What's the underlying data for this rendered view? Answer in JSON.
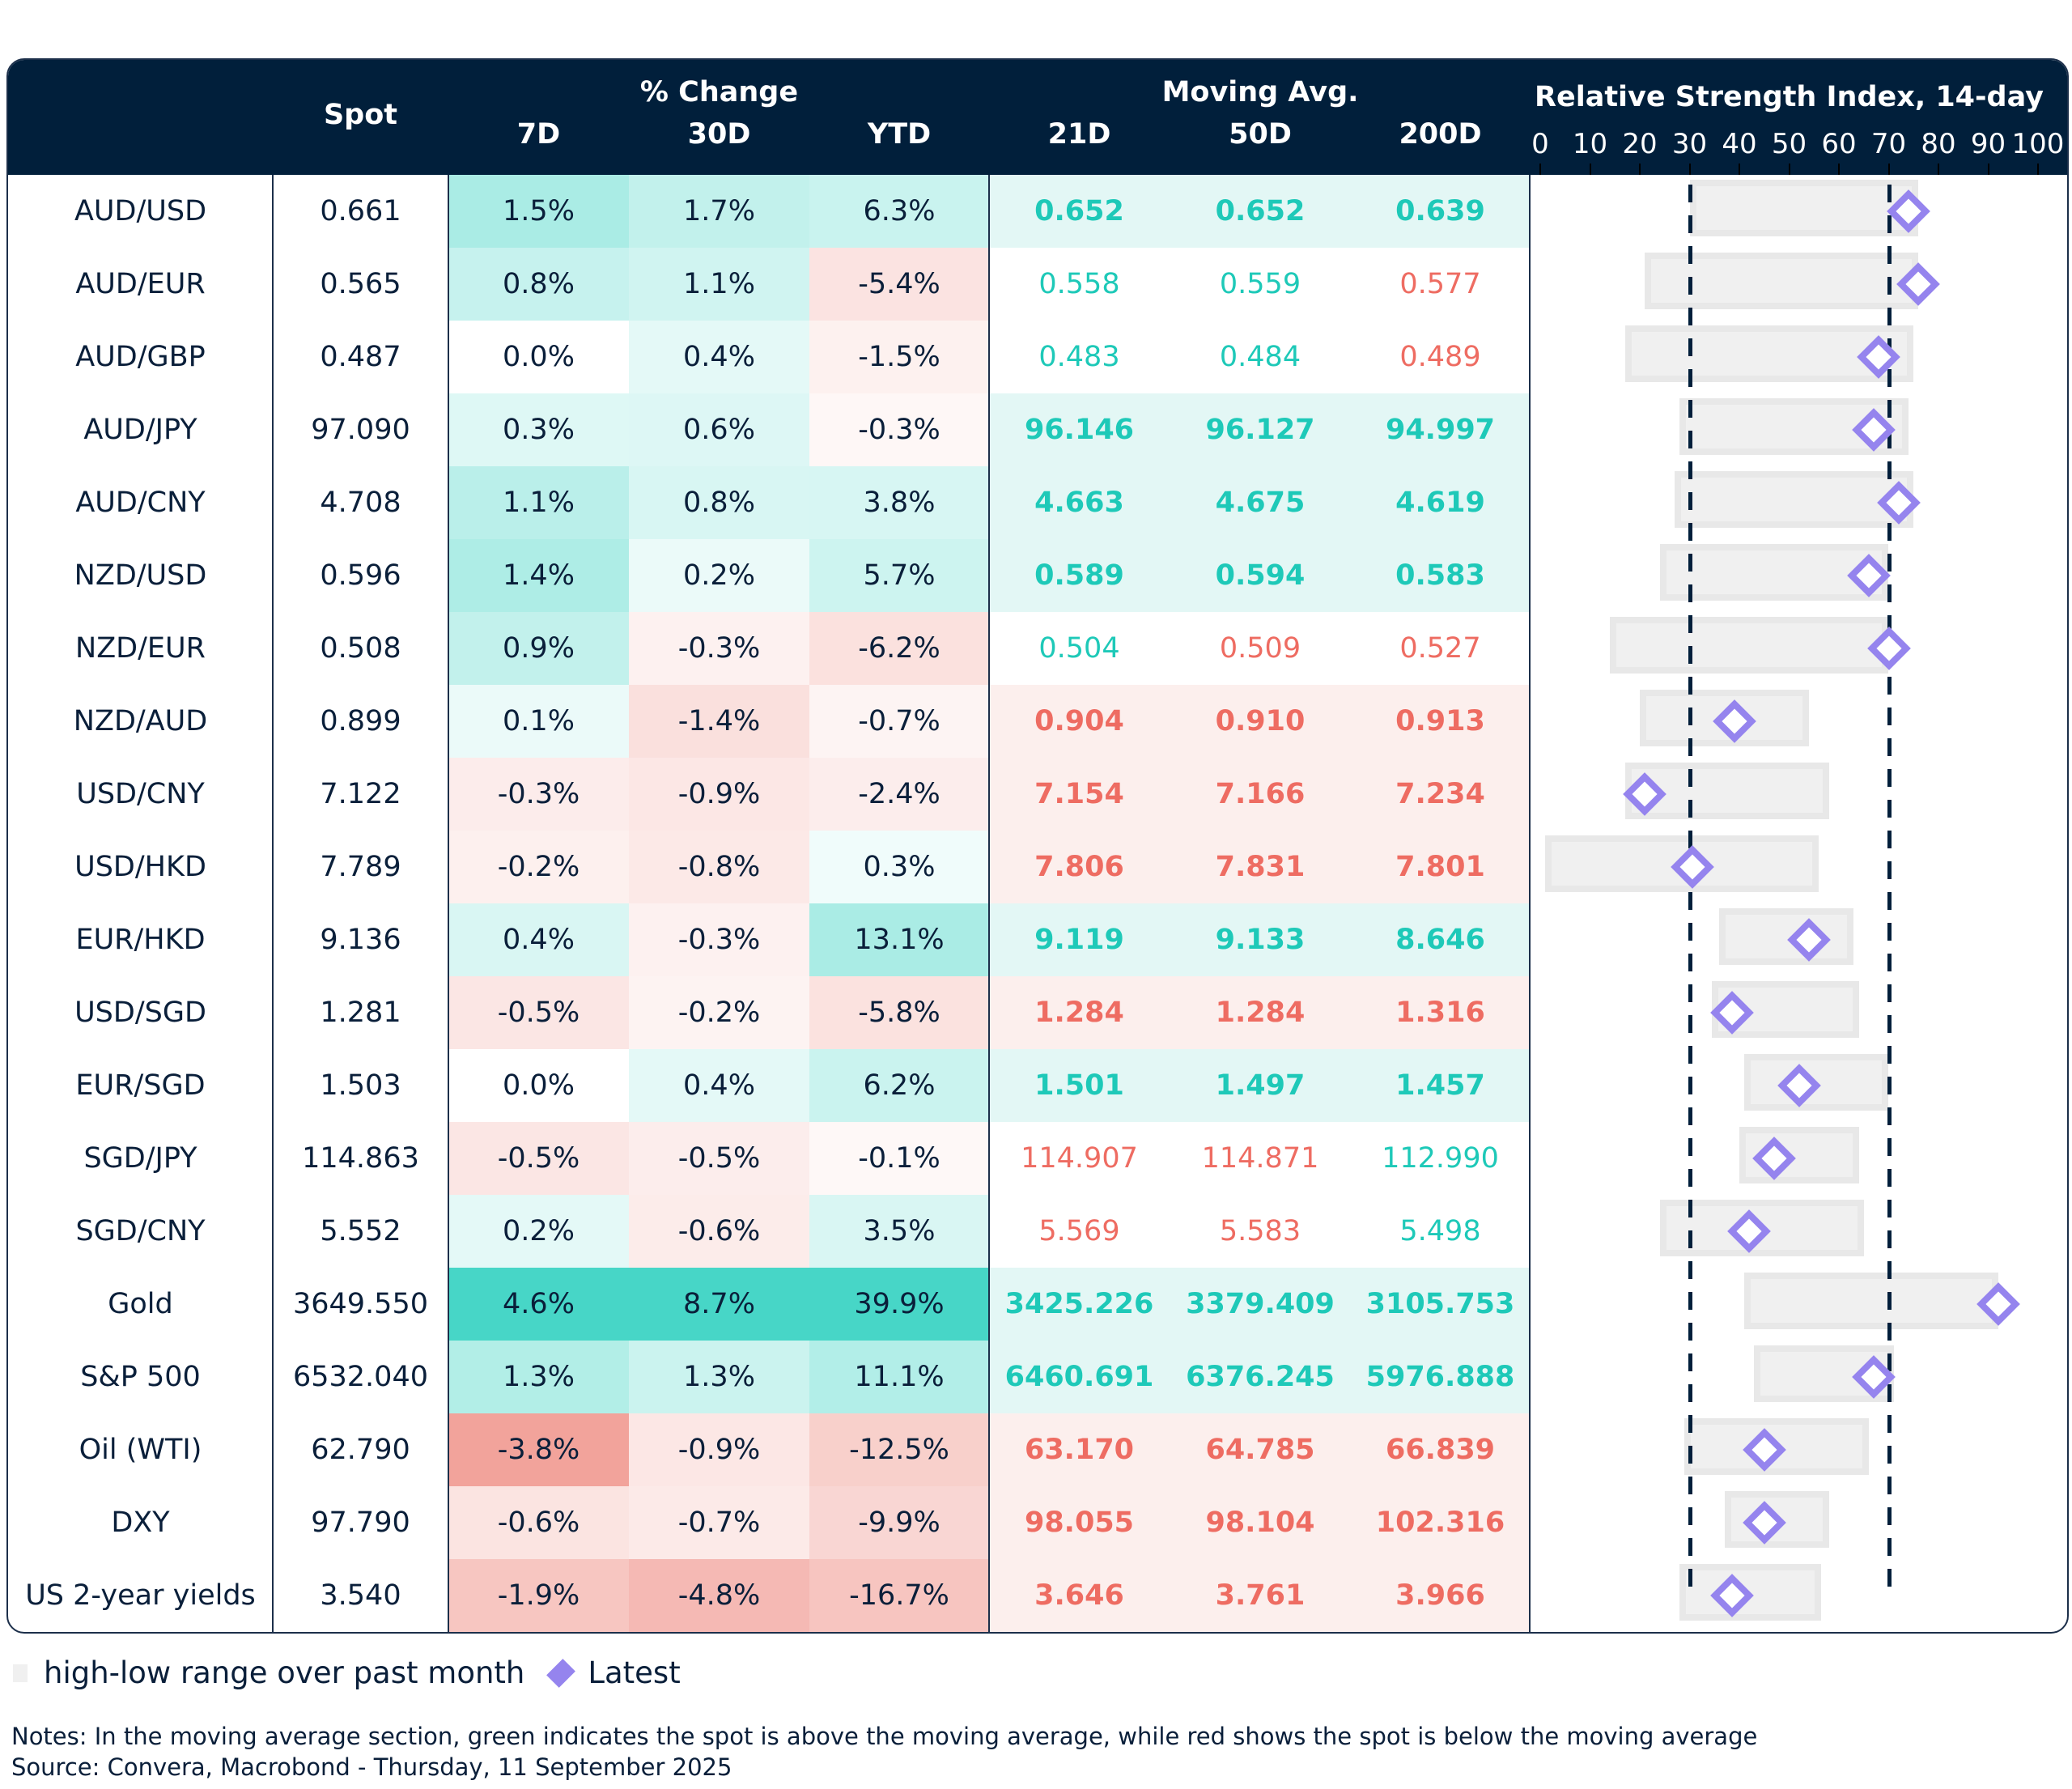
{
  "header": {
    "spot": "Spot",
    "pct_change": "% Change",
    "pct_cols": [
      "7D",
      "30D",
      "YTD"
    ],
    "moving_avg": "Moving Avg.",
    "ma_cols": [
      "21D",
      "50D",
      "200D"
    ],
    "rsi_title": "Relative Strength Index, 14-day",
    "rsi_ticks": [
      "0",
      "10",
      "20",
      "30",
      "40",
      "50",
      "60",
      "70",
      "80",
      "90",
      "100"
    ]
  },
  "colors": {
    "header_bg": "#011f3b",
    "green_text": "#1ec9b8",
    "red_text": "#ee6c62",
    "green_strong": "#33d1c1",
    "red_strong": "#ee8a80",
    "ma_green_bg": "#e3f7f5",
    "ma_red_bg": "#fcefed",
    "rsi_marker": "#9584ee",
    "rsi_range": "#f0f0f0"
  },
  "chart_data": {
    "type": "table",
    "rsi_range": [
      0,
      100
    ],
    "rsi_reference_lines": [
      30,
      70
    ],
    "rows": [
      {
        "label": "AUD/USD",
        "spot": "0.661",
        "pct": [
          "1.5%",
          "1.7%",
          "6.3%"
        ],
        "ma": [
          "0.652",
          "0.652",
          "0.639"
        ],
        "rsi": {
          "low": 30,
          "high": 76,
          "latest": 74
        }
      },
      {
        "label": "AUD/EUR",
        "spot": "0.565",
        "pct": [
          "0.8%",
          "1.1%",
          "-5.4%"
        ],
        "ma": [
          "0.558",
          "0.559",
          "0.577"
        ],
        "rsi": {
          "low": 21,
          "high": 76,
          "latest": 76
        }
      },
      {
        "label": "AUD/GBP",
        "spot": "0.487",
        "pct": [
          "0.0%",
          "0.4%",
          "-1.5%"
        ],
        "ma": [
          "0.483",
          "0.484",
          "0.489"
        ],
        "rsi": {
          "low": 17,
          "high": 75,
          "latest": 68
        }
      },
      {
        "label": "AUD/JPY",
        "spot": "97.090",
        "pct": [
          "0.3%",
          "0.6%",
          "-0.3%"
        ],
        "ma": [
          "96.146",
          "96.127",
          "94.997"
        ],
        "rsi": {
          "low": 28,
          "high": 74,
          "latest": 67
        }
      },
      {
        "label": "AUD/CNY",
        "spot": "4.708",
        "pct": [
          "1.1%",
          "0.8%",
          "3.8%"
        ],
        "ma": [
          "4.663",
          "4.675",
          "4.619"
        ],
        "rsi": {
          "low": 27,
          "high": 75,
          "latest": 72
        }
      },
      {
        "label": "NZD/USD",
        "spot": "0.596",
        "pct": [
          "1.4%",
          "0.2%",
          "5.7%"
        ],
        "ma": [
          "0.589",
          "0.594",
          "0.583"
        ],
        "rsi": {
          "low": 24,
          "high": 70,
          "latest": 66
        }
      },
      {
        "label": "NZD/EUR",
        "spot": "0.508",
        "pct": [
          "0.9%",
          "-0.3%",
          "-6.2%"
        ],
        "ma": [
          "0.504",
          "0.509",
          "0.527"
        ],
        "rsi": {
          "low": 14,
          "high": 70,
          "latest": 70
        }
      },
      {
        "label": "NZD/AUD",
        "spot": "0.899",
        "pct": [
          "0.1%",
          "-1.4%",
          "-0.7%"
        ],
        "ma": [
          "0.904",
          "0.910",
          "0.913"
        ],
        "rsi": {
          "low": 20,
          "high": 54,
          "latest": 39
        }
      },
      {
        "label": "USD/CNY",
        "spot": "7.122",
        "pct": [
          "-0.3%",
          "-0.9%",
          "-2.4%"
        ],
        "ma": [
          "7.154",
          "7.166",
          "7.234"
        ],
        "rsi": {
          "low": 17,
          "high": 58,
          "latest": 21
        }
      },
      {
        "label": "USD/HKD",
        "spot": "7.789",
        "pct": [
          "-0.2%",
          "-0.8%",
          "0.3%"
        ],
        "ma": [
          "7.806",
          "7.831",
          "7.801"
        ],
        "rsi": {
          "low": 1,
          "high": 56,
          "latest": 30.5
        }
      },
      {
        "label": "EUR/HKD",
        "spot": "9.136",
        "pct": [
          "0.4%",
          "-0.3%",
          "13.1%"
        ],
        "ma": [
          "9.119",
          "9.133",
          "8.646"
        ],
        "rsi": {
          "low": 36,
          "high": 63,
          "latest": 54
        }
      },
      {
        "label": "USD/SGD",
        "spot": "1.281",
        "pct": [
          "-0.5%",
          "-0.2%",
          "-5.8%"
        ],
        "ma": [
          "1.284",
          "1.284",
          "1.316"
        ],
        "rsi": {
          "low": 34.5,
          "high": 64,
          "latest": 38.5
        }
      },
      {
        "label": "EUR/SGD",
        "spot": "1.503",
        "pct": [
          "0.0%",
          "0.4%",
          "6.2%"
        ],
        "ma": [
          "1.501",
          "1.497",
          "1.457"
        ],
        "rsi": {
          "low": 41,
          "high": 70,
          "latest": 52
        }
      },
      {
        "label": "SGD/JPY",
        "spot": "114.863",
        "pct": [
          "-0.5%",
          "-0.5%",
          "-0.1%"
        ],
        "ma": [
          "114.907",
          "114.871",
          "112.990"
        ],
        "rsi": {
          "low": 40,
          "high": 64,
          "latest": 47
        }
      },
      {
        "label": "SGD/CNY",
        "spot": "5.552",
        "pct": [
          "0.2%",
          "-0.6%",
          "3.5%"
        ],
        "ma": [
          "5.569",
          "5.583",
          "5.498"
        ],
        "rsi": {
          "low": 24,
          "high": 65,
          "latest": 42
        }
      },
      {
        "label": "Gold",
        "spot": "3649.550",
        "pct": [
          "4.6%",
          "8.7%",
          "39.9%"
        ],
        "ma": [
          "3425.226",
          "3379.409",
          "3105.753"
        ],
        "rsi": {
          "low": 41,
          "high": 92,
          "latest": 92
        }
      },
      {
        "label": "S&P 500",
        "spot": "6532.040",
        "pct": [
          "1.3%",
          "1.3%",
          "11.1%"
        ],
        "ma": [
          "6460.691",
          "6376.245",
          "5976.888"
        ],
        "rsi": {
          "low": 43,
          "high": 71,
          "latest": 67
        }
      },
      {
        "label": "Oil (WTI)",
        "spot": "62.790",
        "pct": [
          "-3.8%",
          "-0.9%",
          "-12.5%"
        ],
        "ma": [
          "63.170",
          "64.785",
          "66.839"
        ],
        "rsi": {
          "low": 29,
          "high": 66,
          "latest": 45
        }
      },
      {
        "label": "DXY",
        "spot": "97.790",
        "pct": [
          "-0.6%",
          "-0.7%",
          "-9.9%"
        ],
        "ma": [
          "98.055",
          "98.104",
          "102.316"
        ],
        "rsi": {
          "low": 37,
          "high": 58,
          "latest": 45
        }
      },
      {
        "label": "US 2-year yields",
        "spot": "3.540",
        "pct": [
          "-1.9%",
          "-4.8%",
          "-16.7%"
        ],
        "ma": [
          "3.646",
          "3.761",
          "3.966"
        ],
        "rsi": {
          "low": 28,
          "high": 56.5,
          "latest": 38.5
        }
      }
    ]
  },
  "legend": {
    "range": "high-low range over past month",
    "latest": "Latest"
  },
  "notes": "Notes: In the moving average section, green indicates the spot is above the moving average, while red shows the spot is below the moving average",
  "source": "Source: Convera, Macrobond - Thursday, 11 September 2025"
}
